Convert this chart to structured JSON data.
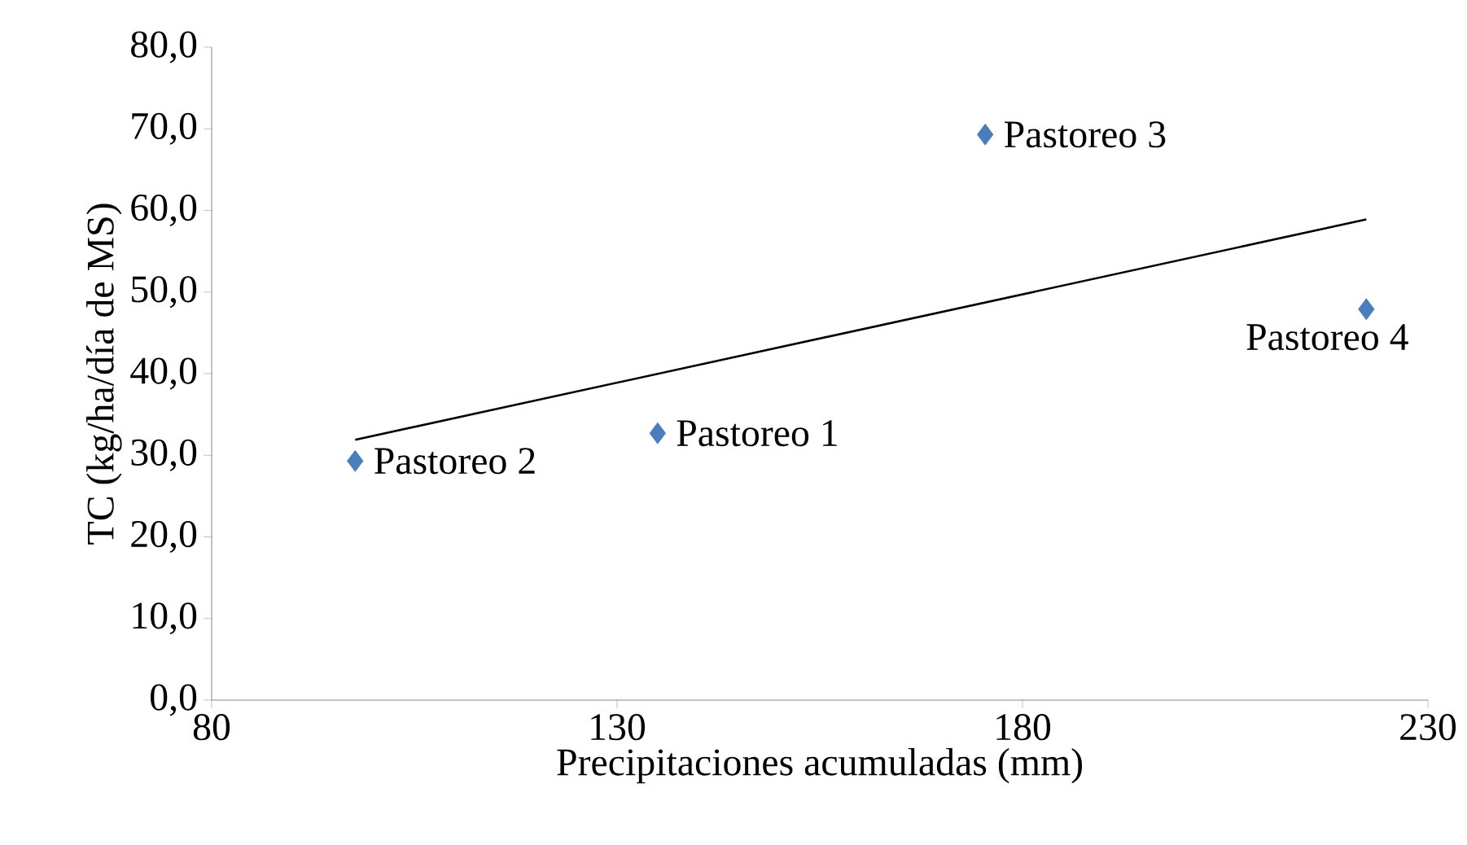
{
  "chart_data": {
    "type": "scatter",
    "xlabel": "Precipitaciones acumuladas (mm)",
    "ylabel": "TC (kg/ha/día de MS)",
    "xlim": [
      80,
      230
    ],
    "ylim": [
      0,
      80
    ],
    "xticks": [
      80,
      130,
      180,
      230
    ],
    "yticks": [
      {
        "value": 0,
        "label": "0,0"
      },
      {
        "value": 10,
        "label": "10,0"
      },
      {
        "value": 20,
        "label": "20,0"
      },
      {
        "value": 30,
        "label": "30,0"
      },
      {
        "value": 40,
        "label": "40,0"
      },
      {
        "value": 50,
        "label": "50,0"
      },
      {
        "value": 60,
        "label": "60,0"
      },
      {
        "value": 70,
        "label": "70,0"
      },
      {
        "value": 80,
        "label": "80,0"
      }
    ],
    "series": [
      {
        "color": "#4a7ebb",
        "marker": "diamond",
        "x": [
          135.0,
          97.7,
          175.4,
          222.4
        ],
        "values": [
          32.7,
          29.3,
          69.3,
          47.9
        ]
      },
      {
        "type": "line",
        "color": "#000000",
        "marker": "none",
        "line_style": "solid",
        "x": [
          97.7,
          222.4
        ],
        "values": [
          31.9,
          58.9
        ]
      }
    ],
    "annotations": [
      {
        "text": "Pastoreo 1",
        "x": 135.0,
        "y": 32.7
      },
      {
        "text": "Pastoreo 2",
        "x": 97.7,
        "y": 29.3
      },
      {
        "text": "Pastoreo 3",
        "x": 175.4,
        "y": 69.3
      },
      {
        "text": "Pastoreo 4",
        "x": 222.4,
        "y": 47.9
      }
    ]
  }
}
